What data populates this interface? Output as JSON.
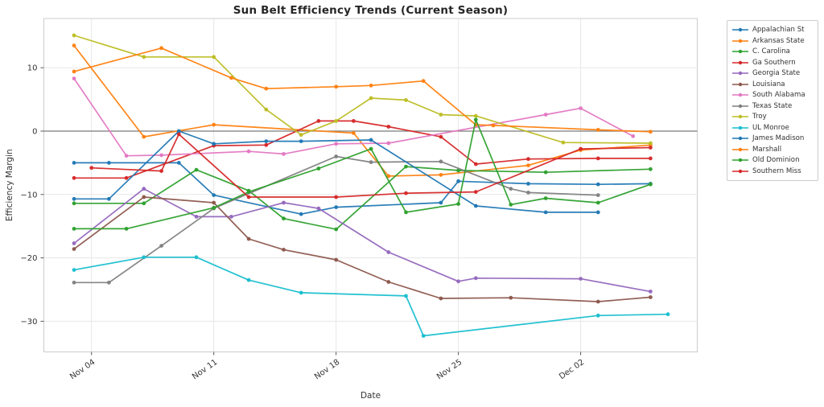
{
  "title": "Sun Belt Efficiency Trends (Current Season)",
  "axes": {
    "xlabel": "Date",
    "ylabel": "Efficiency Margin"
  },
  "chart_data": {
    "type": "line",
    "title": "Sun Belt Efficiency Trends (Current Season)",
    "xlabel": "Date",
    "ylabel": "Efficiency Margin",
    "x_tick_labels": [
      "Nov 04",
      "Nov 11",
      "Nov 18",
      "Nov 25",
      "Dec 02"
    ],
    "y_ticks": [
      {
        "label": "10",
        "value": 10
      },
      {
        "label": "0",
        "value": 0
      },
      {
        "label": "−10",
        "value": -10
      },
      {
        "label": "−20",
        "value": -20
      },
      {
        "label": "−30",
        "value": -30
      }
    ],
    "ylim": [
      -34.5,
      17.7
    ],
    "x_range_dates": [
      "Nov 03",
      "Dec 07"
    ],
    "grid": true,
    "zero_line": true,
    "legend_position": "right",
    "series": [
      {
        "name": "Appalachian St",
        "color": "#1f77b4",
        "points": [
          [
            "Nov 03",
            -5.0
          ],
          [
            "Nov 05",
            -5.0
          ],
          [
            "Nov 09",
            -5.0
          ],
          [
            "Nov 11",
            -10.1
          ],
          [
            "Nov 16",
            -13.1
          ],
          [
            "Nov 18",
            -12.0
          ],
          [
            "Nov 24",
            -11.3
          ],
          [
            "Nov 25",
            -7.9
          ],
          [
            "Nov 29",
            -8.3
          ],
          [
            "Dec 03",
            -8.4
          ],
          [
            "Dec 06",
            -8.3
          ]
        ]
      },
      {
        "name": "Arkansas State",
        "color": "#ff7f0e",
        "points": [
          [
            "Nov 03",
            13.5
          ],
          [
            "Nov 07",
            -0.9
          ],
          [
            "Nov 11",
            1.0
          ],
          [
            "Nov 19",
            -0.3
          ],
          [
            "Nov 21",
            -7.1
          ],
          [
            "Nov 24",
            -6.9
          ],
          [
            "Nov 29",
            -5.4
          ],
          [
            "Dec 02",
            -3.0
          ],
          [
            "Dec 06",
            -2.2
          ]
        ]
      },
      {
        "name": "C. Carolina",
        "color": "#2ca02c",
        "points": [
          [
            "Nov 03",
            -11.4
          ],
          [
            "Nov 07",
            -11.4
          ],
          [
            "Nov 10",
            -6.1
          ],
          [
            "Nov 13",
            -9.4
          ],
          [
            "Nov 15",
            -13.8
          ],
          [
            "Nov 18",
            -15.5
          ],
          [
            "Nov 22",
            -5.6
          ],
          [
            "Nov 25",
            -6.2
          ],
          [
            "Nov 30",
            -6.5
          ],
          [
            "Dec 06",
            -6.0
          ]
        ]
      },
      {
        "name": "Ga Southern",
        "color": "#d62728",
        "points": [
          [
            "Nov 03",
            -7.4
          ],
          [
            "Nov 06",
            -7.4
          ],
          [
            "Nov 11",
            -2.3
          ],
          [
            "Nov 14",
            -2.2
          ],
          [
            "Nov 17",
            1.6
          ],
          [
            "Nov 19",
            1.6
          ],
          [
            "Nov 21",
            0.7
          ],
          [
            "Nov 24",
            -0.9
          ],
          [
            "Nov 26",
            -5.2
          ],
          [
            "Nov 29",
            -4.4
          ],
          [
            "Dec 03",
            -4.3
          ],
          [
            "Dec 06",
            -4.3
          ]
        ]
      },
      {
        "name": "Georgia State",
        "color": "#9467bd",
        "points": [
          [
            "Nov 03",
            -17.7
          ],
          [
            "Nov 07",
            -9.1
          ],
          [
            "Nov 10",
            -13.5
          ],
          [
            "Nov 12",
            -13.5
          ],
          [
            "Nov 15",
            -11.3
          ],
          [
            "Nov 17",
            -12.2
          ],
          [
            "Nov 21",
            -19.1
          ],
          [
            "Nov 25",
            -23.7
          ],
          [
            "Nov 26",
            -23.2
          ],
          [
            "Dec 02",
            -23.3
          ],
          [
            "Dec 06",
            -25.3
          ]
        ]
      },
      {
        "name": "Louisiana",
        "color": "#8c564b",
        "points": [
          [
            "Nov 03",
            -18.6
          ],
          [
            "Nov 07",
            -10.4
          ],
          [
            "Nov 11",
            -11.3
          ],
          [
            "Nov 13",
            -17.0
          ],
          [
            "Nov 15",
            -18.7
          ],
          [
            "Nov 18",
            -20.3
          ],
          [
            "Nov 21",
            -23.8
          ],
          [
            "Nov 24",
            -26.4
          ],
          [
            "Nov 28",
            -26.3
          ],
          [
            "Dec 03",
            -26.9
          ],
          [
            "Dec 06",
            -26.2
          ]
        ]
      },
      {
        "name": "South Alabama",
        "color": "#e377c2",
        "points": [
          [
            "Nov 03",
            8.3
          ],
          [
            "Nov 06",
            -3.9
          ],
          [
            "Nov 08",
            -3.8
          ],
          [
            "Nov 13",
            -3.2
          ],
          [
            "Nov 15",
            -3.6
          ],
          [
            "Nov 18",
            -2.0
          ],
          [
            "Nov 21",
            -1.9
          ],
          [
            "Nov 30",
            2.6
          ],
          [
            "Dec 02",
            3.6
          ],
          [
            "Dec 05",
            -0.8
          ]
        ]
      },
      {
        "name": "Texas State",
        "color": "#7f7f7f",
        "points": [
          [
            "Nov 03",
            -23.9
          ],
          [
            "Nov 05",
            -23.9
          ],
          [
            "Nov 08",
            -18.1
          ],
          [
            "Nov 11",
            -12.2
          ],
          [
            "Nov 18",
            -4.0
          ],
          [
            "Nov 20",
            -4.9
          ],
          [
            "Nov 24",
            -4.8
          ],
          [
            "Nov 28",
            -9.1
          ],
          [
            "Nov 29",
            -9.7
          ],
          [
            "Dec 03",
            -10.1
          ]
        ]
      },
      {
        "name": "Troy",
        "color": "#bcbd22",
        "points": [
          [
            "Nov 03",
            15.1
          ],
          [
            "Nov 07",
            11.7
          ],
          [
            "Nov 11",
            11.7
          ],
          [
            "Nov 14",
            3.4
          ],
          [
            "Nov 16",
            -0.6
          ],
          [
            "Nov 18",
            1.6
          ],
          [
            "Nov 20",
            5.2
          ],
          [
            "Nov 22",
            4.9
          ],
          [
            "Nov 24",
            2.6
          ],
          [
            "Nov 26",
            2.4
          ],
          [
            "Dec 01",
            -1.8
          ],
          [
            "Dec 06",
            -1.9
          ]
        ]
      },
      {
        "name": "UL Monroe",
        "color": "#17becf",
        "points": [
          [
            "Nov 03",
            -21.9
          ],
          [
            "Nov 07",
            -19.9
          ],
          [
            "Nov 10",
            -19.9
          ],
          [
            "Nov 13",
            -23.5
          ],
          [
            "Nov 16",
            -25.5
          ],
          [
            "Nov 22",
            -26.0
          ],
          [
            "Nov 23",
            -32.3
          ],
          [
            "Dec 03",
            -29.1
          ],
          [
            "Dec 07",
            -28.9
          ]
        ]
      },
      {
        "name": "James Madison",
        "color": "#1f77b4",
        "points": [
          [
            "Nov 03",
            -10.7
          ],
          [
            "Nov 05",
            -10.7
          ],
          [
            "Nov 09",
            0.0
          ],
          [
            "Nov 11",
            -2.0
          ],
          [
            "Nov 14",
            -1.6
          ],
          [
            "Nov 16",
            -1.6
          ],
          [
            "Nov 20",
            -1.4
          ],
          [
            "Nov 26",
            -11.8
          ],
          [
            "Nov 30",
            -12.8
          ],
          [
            "Dec 03",
            -12.8
          ]
        ]
      },
      {
        "name": "Marshall",
        "color": "#ff7f0e",
        "points": [
          [
            "Nov 03",
            9.4
          ],
          [
            "Nov 08",
            13.1
          ],
          [
            "Nov 12",
            8.4
          ],
          [
            "Nov 14",
            6.7
          ],
          [
            "Nov 18",
            7.0
          ],
          [
            "Nov 20",
            7.2
          ],
          [
            "Nov 23",
            7.9
          ],
          [
            "Nov 26",
            1.0
          ],
          [
            "Nov 27",
            0.9
          ],
          [
            "Dec 03",
            0.2
          ],
          [
            "Dec 06",
            -0.1
          ]
        ]
      },
      {
        "name": "Old Dominion",
        "color": "#2ca02c",
        "points": [
          [
            "Nov 03",
            -15.4
          ],
          [
            "Nov 06",
            -15.4
          ],
          [
            "Nov 11",
            -12.1
          ],
          [
            "Nov 13",
            -9.6
          ],
          [
            "Nov 17",
            -5.9
          ],
          [
            "Nov 20",
            -2.8
          ],
          [
            "Nov 22",
            -12.8
          ],
          [
            "Nov 25",
            -11.5
          ],
          [
            "Nov 26",
            1.8
          ],
          [
            "Nov 28",
            -11.6
          ],
          [
            "Nov 30",
            -10.6
          ],
          [
            "Dec 03",
            -11.3
          ],
          [
            "Dec 06",
            -8.4
          ]
        ]
      },
      {
        "name": "Southern Miss",
        "color": "#d62728",
        "points": [
          [
            "Nov 04",
            -5.8
          ],
          [
            "Nov 08",
            -6.3
          ],
          [
            "Nov 09",
            -0.5
          ],
          [
            "Nov 13",
            -10.4
          ],
          [
            "Nov 18",
            -10.4
          ],
          [
            "Nov 22",
            -9.8
          ],
          [
            "Nov 26",
            -9.6
          ],
          [
            "Dec 02",
            -2.8
          ],
          [
            "Dec 06",
            -2.6
          ]
        ]
      }
    ]
  }
}
